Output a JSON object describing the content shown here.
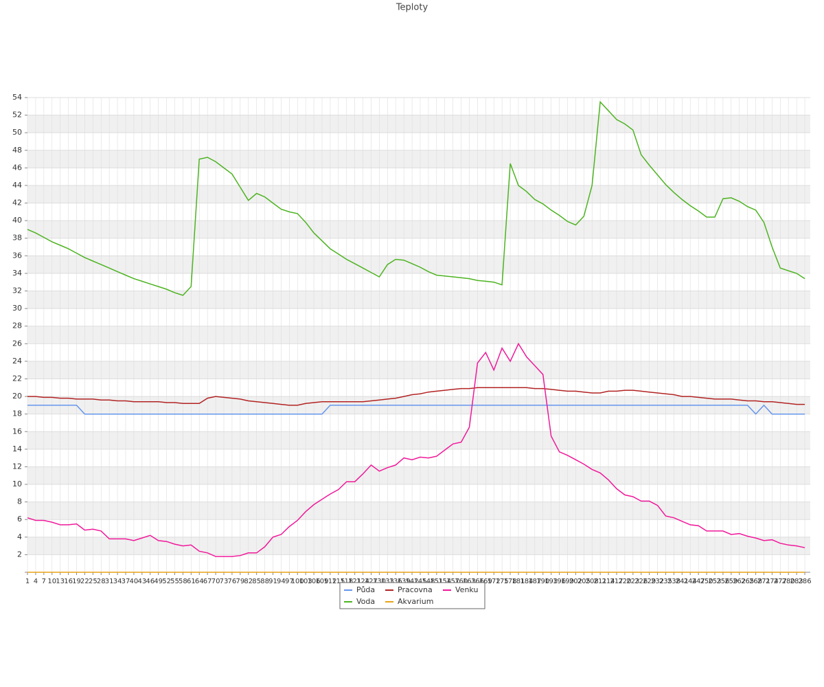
{
  "chart_data": {
    "type": "line",
    "title": "Teploty",
    "x": [
      1,
      4,
      7,
      10,
      13,
      16,
      19,
      22,
      25,
      28,
      31,
      34,
      37,
      40,
      43,
      46,
      49,
      52,
      55,
      58,
      61,
      64,
      67,
      70,
      73,
      76,
      79,
      82,
      85,
      88,
      91,
      94,
      97,
      100,
      103,
      106,
      109,
      112,
      115,
      118,
      121,
      124,
      127,
      130,
      133,
      136,
      139,
      142,
      145,
      148,
      151,
      154,
      157,
      160,
      163,
      166,
      169,
      172,
      175,
      178,
      181,
      184,
      187,
      190,
      193,
      196,
      199,
      202,
      205,
      208,
      211,
      214,
      217,
      220,
      223,
      226,
      229,
      232,
      235,
      238,
      241,
      244,
      247,
      250,
      253,
      256,
      259,
      262,
      265,
      268,
      271,
      274,
      277,
      280,
      283,
      286
    ],
    "xlim": [
      1,
      288
    ],
    "ylim": [
      0,
      54
    ],
    "yticks": [
      2,
      4,
      6,
      8,
      10,
      12,
      14,
      16,
      18,
      20,
      22,
      24,
      26,
      28,
      30,
      32,
      34,
      36,
      38,
      40,
      42,
      44,
      46,
      48,
      50,
      52,
      54
    ],
    "grid": true,
    "legend": "bottom",
    "series": [
      {
        "name": "Půda",
        "color": "#6495ed",
        "values": [
          19,
          19,
          19,
          19,
          19,
          19,
          19,
          18,
          18,
          18,
          18,
          18,
          18,
          18,
          18,
          18,
          18,
          18,
          18,
          18,
          18,
          18,
          18,
          18,
          18,
          18,
          18,
          18,
          18,
          18,
          18,
          18,
          18,
          18,
          18,
          18,
          18,
          19,
          19,
          19,
          19,
          19,
          19,
          19,
          19,
          19,
          19,
          19,
          19,
          19,
          19,
          19,
          19,
          19,
          19,
          19,
          19,
          19,
          19,
          19,
          19,
          19,
          19,
          19,
          19,
          19,
          19,
          19,
          19,
          19,
          19,
          19,
          19,
          19,
          19,
          19,
          19,
          19,
          19,
          19,
          19,
          19,
          19,
          19,
          19,
          19,
          19,
          19,
          19,
          18,
          19,
          18,
          18,
          18,
          18,
          18
        ]
      },
      {
        "name": "Voda",
        "color": "#4cb320",
        "values": [
          39.0,
          38.6,
          38.1,
          37.6,
          37.2,
          36.8,
          36.3,
          35.8,
          35.4,
          35.0,
          34.6,
          34.2,
          33.8,
          33.4,
          33.1,
          32.8,
          32.5,
          32.2,
          31.8,
          31.5,
          32.5,
          47.0,
          47.2,
          46.7,
          46.0,
          45.3,
          43.8,
          42.3,
          43.1,
          42.7,
          42.0,
          41.3,
          41.0,
          40.8,
          39.8,
          38.6,
          37.7,
          36.8,
          36.2,
          35.6,
          35.1,
          34.6,
          34.1,
          33.6,
          35.0,
          35.6,
          35.5,
          35.1,
          34.7,
          34.2,
          33.8,
          33.7,
          33.6,
          33.5,
          33.4,
          33.2,
          33.1,
          33.0,
          32.7,
          46.5,
          44.0,
          43.3,
          42.4,
          41.9,
          41.2,
          40.6,
          39.9,
          39.5,
          40.5,
          44.0,
          53.5,
          52.5,
          51.5,
          51.0,
          50.3,
          47.5,
          46.3,
          45.2,
          44.1,
          43.2,
          42.4,
          41.7,
          41.1,
          40.4,
          40.4,
          42.5,
          42.6,
          42.2,
          41.6,
          41.2,
          39.8,
          37.0,
          34.6,
          34.3,
          34.0,
          33.4
        ]
      },
      {
        "name": "Pracovna",
        "color": "#b22222",
        "values": [
          20.0,
          20.0,
          19.9,
          19.9,
          19.8,
          19.8,
          19.7,
          19.7,
          19.7,
          19.6,
          19.6,
          19.5,
          19.5,
          19.4,
          19.4,
          19.4,
          19.4,
          19.3,
          19.3,
          19.2,
          19.2,
          19.2,
          19.8,
          20.0,
          19.9,
          19.8,
          19.7,
          19.5,
          19.4,
          19.3,
          19.2,
          19.1,
          19.0,
          19.0,
          19.2,
          19.3,
          19.4,
          19.4,
          19.4,
          19.4,
          19.4,
          19.4,
          19.5,
          19.6,
          19.7,
          19.8,
          20.0,
          20.2,
          20.3,
          20.5,
          20.6,
          20.7,
          20.8,
          20.9,
          20.9,
          21.0,
          21.0,
          21.0,
          21.0,
          21.0,
          21.0,
          21.0,
          20.9,
          20.9,
          20.8,
          20.7,
          20.6,
          20.6,
          20.5,
          20.4,
          20.4,
          20.6,
          20.6,
          20.7,
          20.7,
          20.6,
          20.5,
          20.4,
          20.3,
          20.2,
          20.0,
          20.0,
          19.9,
          19.8,
          19.7,
          19.7,
          19.7,
          19.6,
          19.5,
          19.5,
          19.4,
          19.4,
          19.3,
          19.2,
          19.1,
          19.1
        ]
      },
      {
        "name": "Akvarium",
        "color": "#e8a317",
        "values": [
          0,
          0,
          0,
          0,
          0,
          0,
          0,
          0,
          0,
          0,
          0,
          0,
          0,
          0,
          0,
          0,
          0,
          0,
          0,
          0,
          0,
          0,
          0,
          0,
          0,
          0,
          0,
          0,
          0,
          0,
          0,
          0,
          0,
          0,
          0,
          0,
          0,
          0,
          0,
          0,
          0,
          0,
          0,
          0,
          0,
          0,
          0,
          0,
          0,
          0,
          0,
          0,
          0,
          0,
          0,
          0,
          0,
          0,
          0,
          0,
          0,
          0,
          0,
          0,
          0,
          0,
          0,
          0,
          0,
          0,
          0,
          0,
          0,
          0,
          0,
          0,
          0,
          0,
          0,
          0,
          0,
          0,
          0,
          0,
          0,
          0,
          0,
          0,
          0,
          0,
          0,
          0,
          0,
          0,
          0,
          0
        ]
      },
      {
        "name": "Venku",
        "color": "#f0189a",
        "values": [
          6.2,
          5.9,
          5.9,
          5.7,
          5.4,
          5.4,
          5.5,
          4.8,
          4.9,
          4.7,
          3.8,
          3.8,
          3.8,
          3.6,
          3.9,
          4.2,
          3.6,
          3.5,
          3.2,
          3.0,
          3.1,
          2.4,
          2.2,
          1.8,
          1.8,
          1.8,
          1.9,
          2.2,
          2.2,
          2.9,
          4.0,
          4.3,
          5.2,
          5.9,
          6.9,
          7.7,
          8.3,
          8.9,
          9.4,
          10.3,
          10.3,
          11.2,
          12.2,
          11.5,
          11.9,
          12.2,
          13.0,
          12.8,
          13.1,
          13.0,
          13.2,
          13.9,
          14.6,
          14.8,
          16.5,
          23.8,
          25.0,
          23.0,
          25.5,
          24.0,
          26.0,
          24.5,
          23.5,
          22.5,
          15.5,
          13.7,
          13.3,
          12.8,
          12.3,
          11.7,
          11.3,
          10.5,
          9.5,
          8.8,
          8.6,
          8.1,
          8.1,
          7.6,
          6.4,
          6.2,
          5.8,
          5.4,
          5.3,
          4.7,
          4.7,
          4.7,
          4.3,
          4.4,
          4.1,
          3.9,
          3.6,
          3.7,
          3.3,
          3.1,
          3.0,
          2.8
        ]
      }
    ]
  }
}
